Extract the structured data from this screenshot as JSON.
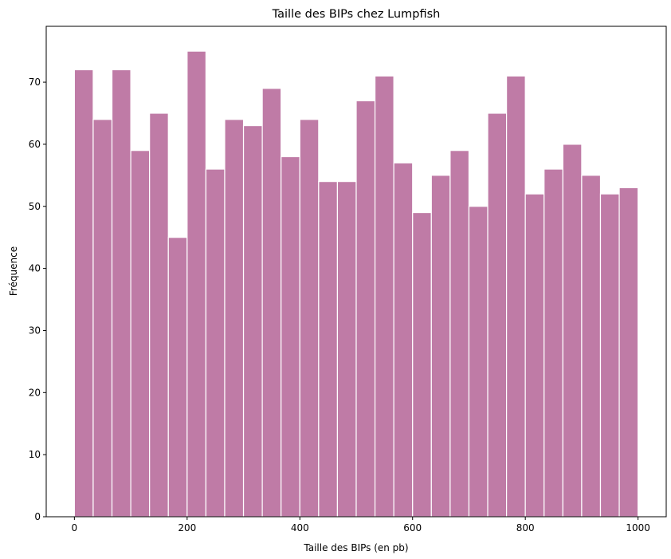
{
  "chart_data": {
    "type": "bar",
    "title": "Taille des BIPs chez Lumpfish",
    "xlabel": "Taille des BIPs (en pb)",
    "ylabel": "Fréquence",
    "x_range": [
      0,
      1000
    ],
    "bin_count": 30,
    "values": [
      72,
      64,
      72,
      59,
      65,
      45,
      75,
      56,
      64,
      63,
      69,
      58,
      64,
      54,
      54,
      67,
      71,
      57,
      49,
      55,
      59,
      50,
      65,
      71,
      52,
      56,
      60,
      55,
      52,
      53
    ],
    "xlim": [
      -50,
      1050
    ],
    "ylim": [
      0,
      79
    ],
    "x_ticks": [
      "0",
      "200",
      "400",
      "600",
      "800",
      "1000"
    ],
    "y_ticks": [
      "0",
      "10",
      "20",
      "30",
      "40",
      "50",
      "60",
      "70"
    ],
    "grid": false,
    "bar_color": "#bf7ba6",
    "edge_color": "#ffffff"
  }
}
